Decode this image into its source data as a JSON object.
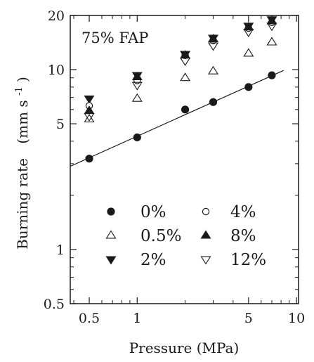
{
  "chart_data": {
    "type": "scatter",
    "title": "",
    "annotation": "75% FAP",
    "xlabel": "Pressure (MPa)",
    "ylabel_text": "Burning rate",
    "ylabel_unit_base": "(mm s",
    "ylabel_unit_exp": "-1",
    "ylabel_unit_close": ")",
    "xscale": "log",
    "yscale": "log",
    "xlim": [
      0.38,
      10.3
    ],
    "ylim": [
      0.5,
      20
    ],
    "xticks": [
      0.5,
      1,
      5,
      10
    ],
    "xtick_labels": [
      "0.5",
      "1",
      "5",
      "10"
    ],
    "yticks": [
      0.5,
      1,
      5,
      10,
      20
    ],
    "ytick_labels": [
      "0.5",
      "1",
      "5",
      "10",
      "20"
    ],
    "grid": false,
    "legend_position": "bottom-center",
    "fit_line": {
      "series": "0%",
      "x": [
        0.38,
        8.3
      ],
      "y": [
        2.9,
        9.9
      ]
    },
    "series": [
      {
        "name": "0%",
        "marker": "circle-filled",
        "x": [
          0.5,
          1,
          2,
          3,
          5,
          7
        ],
        "y": [
          3.2,
          4.2,
          6.0,
          6.6,
          8.0,
          9.3
        ]
      },
      {
        "name": "0.5%",
        "marker": "triangle-up-open",
        "x": [
          0.5,
          1,
          2,
          3,
          5,
          7
        ],
        "y": [
          5.3,
          6.9,
          9.0,
          9.8,
          12.3,
          14.2
        ]
      },
      {
        "name": "2%",
        "marker": "triangle-down-filled",
        "x": [
          0.5,
          1,
          2,
          3,
          5,
          7
        ],
        "y": [
          6.9,
          9.3,
          12.2,
          15.0,
          17.5,
          19.0
        ]
      },
      {
        "name": "4%",
        "marker": "circle-open",
        "x": [
          0.5,
          1,
          2,
          3,
          5,
          7
        ],
        "y": [
          6.3,
          8.7,
          12.0,
          14.5,
          17.0,
          18.3
        ]
      },
      {
        "name": "8%",
        "marker": "triangle-up-filled",
        "x": [
          0.5,
          1,
          2,
          3,
          5,
          7
        ],
        "y": [
          5.9,
          9.1,
          12.0,
          14.8,
          17.2,
          18.6
        ]
      },
      {
        "name": "12%",
        "marker": "triangle-down-open",
        "x": [
          0.5,
          1,
          2,
          3,
          5,
          7
        ],
        "y": [
          5.5,
          8.2,
          11.2,
          13.6,
          16.2,
          17.5
        ]
      }
    ],
    "legend": [
      {
        "label": "0%",
        "marker": "circle-filled"
      },
      {
        "label": "4%",
        "marker": "circle-open"
      },
      {
        "label": "0.5%",
        "marker": "triangle-up-open"
      },
      {
        "label": "8%",
        "marker": "triangle-up-filled"
      },
      {
        "label": "2%",
        "marker": "triangle-down-filled"
      },
      {
        "label": "12%",
        "marker": "triangle-down-open"
      }
    ]
  }
}
